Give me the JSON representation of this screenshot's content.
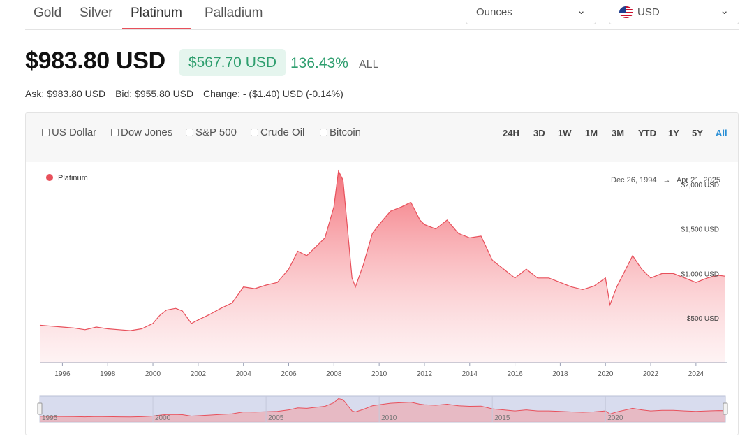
{
  "tabs": [
    "Gold",
    "Silver",
    "Platinum",
    "Palladium"
  ],
  "active_tab": "Platinum",
  "unit_select": {
    "value": "Ounces"
  },
  "currency_select": {
    "value": "USD"
  },
  "quote": {
    "price": "$983.80 USD",
    "change_amount": "$567.70 USD",
    "change_percent": "136.43%",
    "change_range": "ALL"
  },
  "stats": {
    "ask": "Ask: $983.80 USD",
    "bid": "Bid: $955.80 USD",
    "change": "Change: - ($1.40) USD (-0.14%)"
  },
  "compare": [
    "US Dollar",
    "Dow Jones",
    "S&P 500",
    "Crude Oil",
    "Bitcoin"
  ],
  "ranges": [
    "24H",
    "3D",
    "1W",
    "1M",
    "3M",
    "YTD",
    "1Y",
    "5Y",
    "All"
  ],
  "active_range": "All",
  "colors": {
    "series": "#e8505b",
    "accent_green": "#2e9e6e",
    "active_range": "#2a8fd6"
  },
  "chart_data": {
    "type": "area",
    "legend": "top-left",
    "grid": false,
    "date_range": {
      "start": "Dec 26, 1994",
      "end": "Apr 21, 2025",
      "arrow": "→"
    },
    "ylim": [
      0,
      2250
    ],
    "y_ticks": [
      {
        "value": 500,
        "label": "$500 USD"
      },
      {
        "value": 1000,
        "label": "$1,000 USD"
      },
      {
        "value": 1500,
        "label": "$1,500 USD"
      },
      {
        "value": 2000,
        "label": "$2,000 USD"
      }
    ],
    "x_ticks": [
      "1996",
      "1998",
      "2000",
      "2002",
      "2004",
      "2006",
      "2008",
      "2010",
      "2012",
      "2014",
      "2016",
      "2018",
      "2020",
      "2022",
      "2024"
    ],
    "navigator_ticks": [
      "1995",
      "2000",
      "2005",
      "2010",
      "2015",
      "2020"
    ],
    "series": [
      {
        "name": "Platinum",
        "x": [
          1995.0,
          1995.5,
          1996.0,
          1996.5,
          1997.0,
          1997.5,
          1998.0,
          1998.5,
          1999.0,
          1999.5,
          2000.0,
          2000.3,
          2000.6,
          2001.0,
          2001.3,
          2001.7,
          2002.0,
          2002.5,
          2003.0,
          2003.5,
          2004.0,
          2004.5,
          2005.0,
          2005.5,
          2006.0,
          2006.4,
          2006.8,
          2007.2,
          2007.6,
          2008.0,
          2008.2,
          2008.4,
          2008.6,
          2008.8,
          2008.95,
          2009.3,
          2009.7,
          2010.0,
          2010.5,
          2011.0,
          2011.4,
          2011.8,
          2012.0,
          2012.5,
          2013.0,
          2013.5,
          2014.0,
          2014.5,
          2015.0,
          2015.5,
          2016.0,
          2016.5,
          2017.0,
          2017.5,
          2018.0,
          2018.5,
          2019.0,
          2019.5,
          2020.0,
          2020.2,
          2020.5,
          2021.0,
          2021.2,
          2021.6,
          2022.0,
          2022.5,
          2023.0,
          2023.5,
          2024.0,
          2024.5,
          2025.0,
          2025.3
        ],
        "values": [
          420,
          410,
          400,
          390,
          370,
          400,
          380,
          370,
          360,
          380,
          440,
          530,
          590,
          610,
          580,
          440,
          480,
          540,
          610,
          670,
          850,
          830,
          870,
          900,
          1050,
          1250,
          1200,
          1300,
          1400,
          1750,
          2150,
          2050,
          1500,
          950,
          850,
          1100,
          1450,
          1550,
          1700,
          1750,
          1800,
          1600,
          1550,
          1500,
          1600,
          1450,
          1400,
          1420,
          1150,
          1050,
          950,
          1050,
          950,
          950,
          900,
          850,
          820,
          860,
          950,
          650,
          850,
          1100,
          1200,
          1050,
          950,
          1000,
          1000,
          950,
          900,
          950,
          980,
          970
        ]
      }
    ]
  }
}
